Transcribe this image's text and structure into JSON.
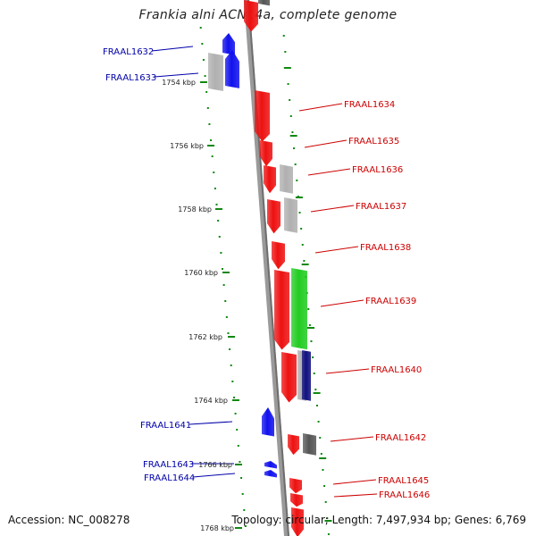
{
  "title": "Frankia alni ACN14a, complete genome",
  "footer": {
    "accession": "Accession: NC_008278",
    "topology": "Topology: circular; Length: 7,497,934 bp; Genes: 6,769"
  },
  "colors": {
    "forward_gene": "#ee1111",
    "reverse_gene": "#1111ee",
    "rna_green": "#22cc22",
    "navy": "#101080",
    "grey_feature": "#b0b0b0",
    "dark_grey": "#555555",
    "backbone": "#888888",
    "dotted_ring": "#118811",
    "label_red": "#cc0000",
    "label_blue": "#0000aa"
  },
  "scale_labels": [
    "1754 kbp",
    "1756 kbp",
    "1758 kbp",
    "1760 kbp",
    "1762 kbp",
    "1764 kbp",
    "1766 kbp",
    "1768 kbp"
  ],
  "gene_labels": [
    {
      "text": "FRAAL1632",
      "strand": "reverse"
    },
    {
      "text": "FRAAL1633",
      "strand": "reverse"
    },
    {
      "text": "FRAAL1634",
      "strand": "forward"
    },
    {
      "text": "FRAAL1635",
      "strand": "forward"
    },
    {
      "text": "FRAAL1636",
      "strand": "forward"
    },
    {
      "text": "FRAAL1637",
      "strand": "forward"
    },
    {
      "text": "FRAAL1638",
      "strand": "forward"
    },
    {
      "text": "FRAAL1639",
      "strand": "forward"
    },
    {
      "text": "FRAAL1640",
      "strand": "forward"
    },
    {
      "text": "FRAAL1641",
      "strand": "reverse"
    },
    {
      "text": "FRAAL1642",
      "strand": "forward"
    },
    {
      "text": "FRAAL1643",
      "strand": "reverse"
    },
    {
      "text": "FRAAL1644",
      "strand": "reverse"
    },
    {
      "text": "FRAAL1645",
      "strand": "forward"
    },
    {
      "text": "FRAAL1646",
      "strand": "forward"
    }
  ]
}
